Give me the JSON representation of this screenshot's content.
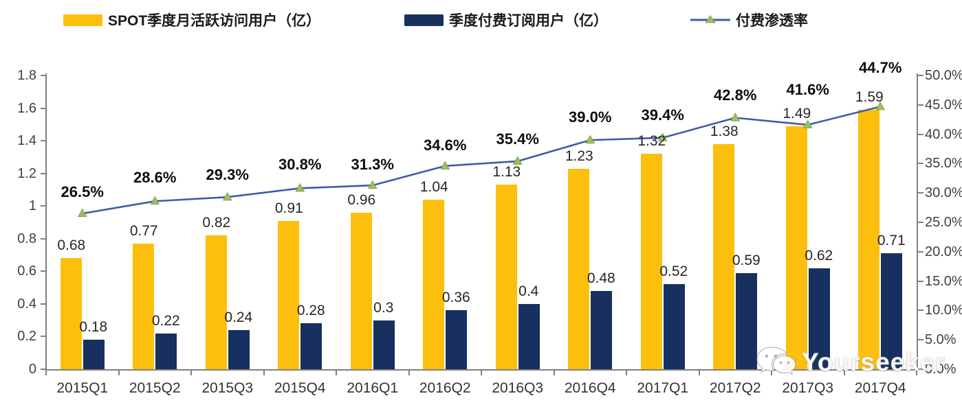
{
  "chart_data": {
    "type": "bar+line",
    "categories": [
      "2015Q1",
      "2015Q2",
      "2015Q3",
      "2015Q4",
      "2016Q1",
      "2016Q2",
      "2016Q3",
      "2016Q4",
      "2017Q1",
      "2017Q2",
      "2017Q3",
      "2017Q4"
    ],
    "series": [
      {
        "name": "SPOT季度月活跃访问用户（亿）",
        "type": "bar",
        "axis": "left",
        "values": [
          0.68,
          0.77,
          0.82,
          0.91,
          0.96,
          1.04,
          1.13,
          1.23,
          1.32,
          1.38,
          1.49,
          1.59
        ],
        "labels": [
          "0.68",
          "0.77",
          "0.82",
          "0.91",
          "0.96",
          "1.04",
          "1.13",
          "1.23",
          "1.32",
          "1.38",
          "1.49",
          "1.59"
        ]
      },
      {
        "name": "季度付费订阅用户（亿）",
        "type": "bar",
        "axis": "left",
        "values": [
          0.18,
          0.22,
          0.24,
          0.28,
          0.3,
          0.36,
          0.4,
          0.48,
          0.52,
          0.59,
          0.62,
          0.71
        ],
        "labels": [
          "0.18",
          "0.22",
          "0.24",
          "0.28",
          "0.3",
          "0.36",
          "0.4",
          "0.48",
          "0.52",
          "0.59",
          "0.62",
          "0.71"
        ]
      },
      {
        "name": "付费渗透率",
        "type": "line",
        "axis": "right",
        "values": [
          26.5,
          28.6,
          29.3,
          30.8,
          31.3,
          34.6,
          35.4,
          39.0,
          39.4,
          42.8,
          41.6,
          44.7
        ],
        "labels": [
          "26.5%",
          "28.6%",
          "29.3%",
          "30.8%",
          "31.3%",
          "34.6%",
          "35.4%",
          "39.0%",
          "39.4%",
          "42.8%",
          "41.6%",
          "44.7%"
        ]
      }
    ],
    "left_axis": {
      "min": 0,
      "max": 1.8,
      "ticks": [
        "0",
        "0.2",
        "0.4",
        "0.6",
        "0.8",
        "1",
        "1.2",
        "1.4",
        "1.6",
        "1.8"
      ]
    },
    "right_axis": {
      "min": 0,
      "max": 50,
      "ticks": [
        "0.0%",
        "5.0%",
        "10.0%",
        "15.0%",
        "20.0%",
        "25.0%",
        "30.0%",
        "35.0%",
        "40.0%",
        "45.0%",
        "50.0%"
      ]
    },
    "grid": false,
    "legend_position": "top",
    "colors": {
      "mau_bar": "#FCBF0E",
      "subs_bar": "#17305F",
      "line": "#3E5CA7",
      "marker": "#9BC15C",
      "marker_edge": "#7FA348",
      "axis": "#808080"
    }
  },
  "watermark": {
    "text": "Yourseeker",
    "icon": "wechat-icon"
  }
}
